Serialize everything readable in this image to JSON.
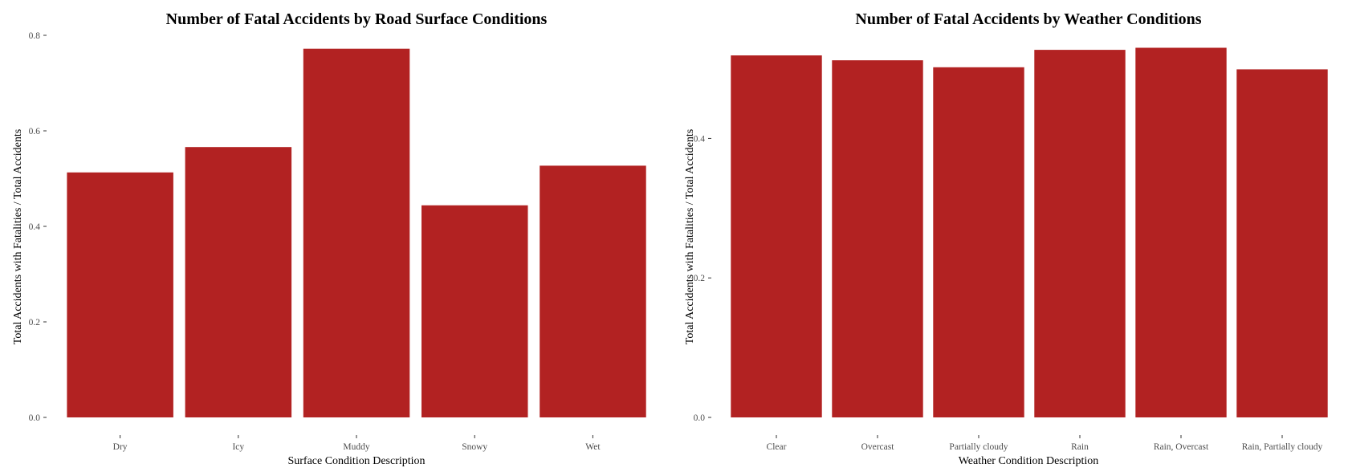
{
  "chart_data": [
    {
      "type": "bar",
      "title": "Number of Fatal Accidents by Road Surface Conditions",
      "xlabel": "Surface Condition Description",
      "ylabel": "Total Accidents with Fatalities / Total Accidents",
      "categories": [
        "Dry",
        "Icy",
        "Muddy",
        "Snowy",
        "Wet"
      ],
      "values": [
        0.513,
        0.566,
        0.772,
        0.444,
        0.527
      ],
      "ylim": [
        0,
        0.8
      ],
      "yticks": [
        "0.0",
        "0.2",
        "0.4",
        "0.6",
        "0.8"
      ],
      "ytick_values": [
        0,
        0.2,
        0.4,
        0.6,
        0.8
      ],
      "bar_color": "#b22222",
      "grid": false
    },
    {
      "type": "bar",
      "title": "Number of Fatal Accidents by Weather Conditions",
      "xlabel": "Weather Condition Description",
      "ylabel": "Total Accidents with Fatalities / Total Accidents",
      "categories": [
        "Clear",
        "Overcast",
        "Partially cloudy",
        "Rain",
        "Rain, Overcast",
        "Rain, Partially cloudy"
      ],
      "values": [
        0.519,
        0.512,
        0.502,
        0.527,
        0.53,
        0.499
      ],
      "ylim": [
        0,
        0.5478
      ],
      "yticks": [
        "0.0",
        "0.2",
        "0.4"
      ],
      "ytick_values": [
        0,
        0.2,
        0.4
      ],
      "bar_color": "#b22222",
      "grid": false
    }
  ]
}
